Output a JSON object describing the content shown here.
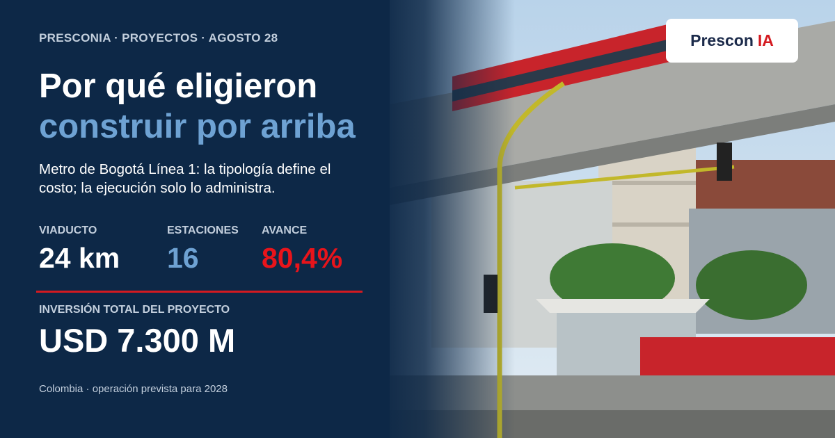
{
  "header": {
    "kicker": "PRESCONIA · PROYECTOS · AGOSTO 28",
    "title_line1": "Por qué eligieron",
    "title_line2": "construir por arriba",
    "subtitle": "Metro de Bogotá Línea 1: la tipología define el costo; la ejecución solo lo administra."
  },
  "stats": [
    {
      "label": "VIADUCTO",
      "value": "24 km"
    },
    {
      "label": "ESTACIONES",
      "value": "16"
    },
    {
      "label": "AVANCE",
      "value": "80,4%"
    }
  ],
  "investment": {
    "label": "INVERSIÓN TOTAL DEL PROYECTO",
    "value": "USD 7.300 M"
  },
  "footer": "Colombia · operación prevista para 2028",
  "logo": {
    "name": "Prescon",
    "accent": "IA"
  }
}
